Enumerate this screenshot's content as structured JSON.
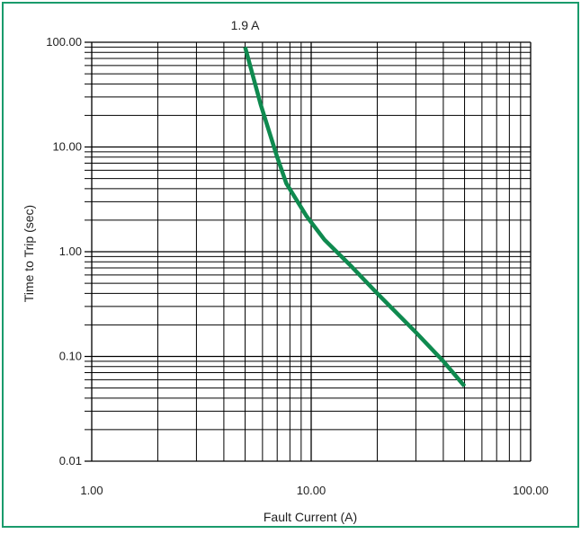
{
  "chart_data": {
    "type": "line",
    "title": "",
    "xlabel": "Fault Current (A)",
    "ylabel": "Time to Trip (sec)",
    "x_scale": "log",
    "y_scale": "log",
    "xlim": [
      1,
      100
    ],
    "ylim": [
      0.01,
      100
    ],
    "x_ticks": [
      {
        "value": 1,
        "label": "1.00"
      },
      {
        "value": 10,
        "label": "10.00"
      },
      {
        "value": 100,
        "label": "100.00"
      }
    ],
    "y_ticks": [
      {
        "value": 100,
        "label": "100.00"
      },
      {
        "value": 10,
        "label": "10.00"
      },
      {
        "value": 1,
        "label": "1.00"
      },
      {
        "value": 0.1,
        "label": "0.10"
      },
      {
        "value": 0.01,
        "label": "0.01"
      }
    ],
    "grid": true,
    "series": [
      {
        "name": "",
        "color": "#0f8a4f",
        "points": [
          {
            "x": 5.0,
            "y": 90
          },
          {
            "x": 5.9,
            "y": 25
          },
          {
            "x": 7.0,
            "y": 8
          },
          {
            "x": 7.7,
            "y": 4.5
          },
          {
            "x": 9.5,
            "y": 2.2
          },
          {
            "x": 11.5,
            "y": 1.3
          },
          {
            "x": 15,
            "y": 0.75
          },
          {
            "x": 20,
            "y": 0.4
          },
          {
            "x": 30,
            "y": 0.17
          },
          {
            "x": 40,
            "y": 0.09
          },
          {
            "x": 50,
            "y": 0.052
          }
        ]
      }
    ],
    "annotations": [
      {
        "text": "1.9 A",
        "x": 5.0,
        "y": 100
      }
    ]
  },
  "colors": {
    "frame_border": "#1a9b6c",
    "grid": "#000000",
    "curve": "#0f8a4f"
  }
}
